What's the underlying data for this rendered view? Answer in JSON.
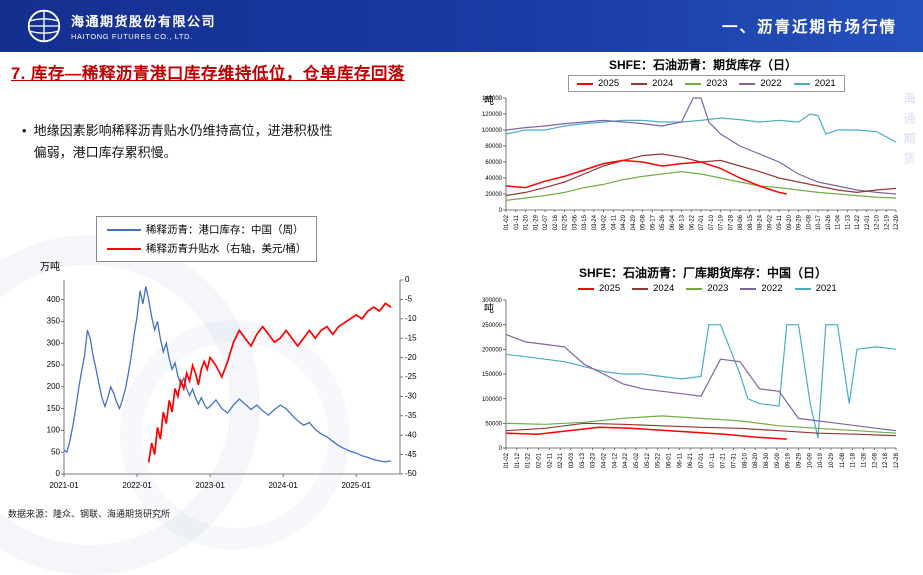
{
  "header": {
    "company_cn": "海通期货股份有限公司",
    "company_en": "HAITONG FUTURES CO., LTD.",
    "section_title": "一、沥青近期市场行情"
  },
  "slide": {
    "title": "7. 库存—稀释沥青港口库存维持低位，仓单库存回落",
    "bullet_marker": "•",
    "bullet": "地缘因素影响稀释沥青贴水仍维持高位，进港积极性偏弱，港口库存累积慢。",
    "source": "数据来源：隆众、钢联、海通期货研究所"
  },
  "decor": {
    "watermark_text": "海通期货"
  },
  "colors": {
    "header_blue": "#1a3aa5",
    "title_red": "#c00000",
    "series_2025": "#ff0000",
    "series_2024": "#953735",
    "series_2023": "#70ad47",
    "series_2022": "#8064a2",
    "series_2021": "#4bacc6",
    "port_blue": "#4472c4"
  },
  "chart_data": [
    {
      "type": "line",
      "title": "",
      "ylabel": "万吨",
      "xlabel": "",
      "grid": false,
      "legend_position": "top",
      "xlim": [
        2021.0,
        2025.6
      ],
      "ylim": [
        0,
        445
      ],
      "yticks": [
        0,
        50,
        100,
        150,
        200,
        250,
        300,
        350,
        400
      ],
      "y2lim": [
        -50,
        0
      ],
      "y2ticks": [
        0,
        -5,
        -10,
        -15,
        -20,
        -25,
        -30,
        -35,
        -40,
        -45,
        -50
      ],
      "xticks": [
        {
          "v": 2021,
          "label": "2021-01"
        },
        {
          "v": 2022,
          "label": "2022-01"
        },
        {
          "v": 2023,
          "label": "2023-01"
        },
        {
          "v": 2024,
          "label": "2024-01"
        },
        {
          "v": 2025,
          "label": "2025-01"
        }
      ],
      "series": [
        {
          "key": "port_inventory_cn_weekly",
          "name": "稀释沥青：港口库存：中国（周）",
          "color": "#4472c4",
          "axis": "left",
          "lw": 1.3,
          "x": [
            2021.0,
            2021.04,
            2021.08,
            2021.12,
            2021.16,
            2021.2,
            2021.24,
            2021.28,
            2021.32,
            2021.36,
            2021.4,
            2021.44,
            2021.48,
            2021.52,
            2021.56,
            2021.6,
            2021.64,
            2021.68,
            2021.72,
            2021.76,
            2021.8,
            2021.84,
            2021.88,
            2021.92,
            2021.96,
            2022.0,
            2022.04,
            2022.08,
            2022.12,
            2022.16,
            2022.2,
            2022.24,
            2022.28,
            2022.32,
            2022.36,
            2022.4,
            2022.44,
            2022.48,
            2022.52,
            2022.56,
            2022.6,
            2022.64,
            2022.68,
            2022.72,
            2022.76,
            2022.8,
            2022.84,
            2022.88,
            2022.92,
            2022.96,
            2023.0,
            2023.08,
            2023.16,
            2023.24,
            2023.32,
            2023.4,
            2023.48,
            2023.56,
            2023.64,
            2023.72,
            2023.8,
            2023.88,
            2023.96,
            2024.04,
            2024.12,
            2024.2,
            2024.28,
            2024.36,
            2024.44,
            2024.52,
            2024.6,
            2024.68,
            2024.76,
            2024.84,
            2024.92,
            2025.0,
            2025.08,
            2025.16,
            2025.24,
            2025.32,
            2025.4,
            2025.48
          ],
          "y": [
            55,
            50,
            75,
            110,
            150,
            195,
            235,
            270,
            330,
            310,
            270,
            240,
            205,
            175,
            155,
            175,
            200,
            185,
            165,
            150,
            170,
            195,
            230,
            270,
            320,
            360,
            420,
            390,
            430,
            400,
            360,
            330,
            350,
            310,
            280,
            300,
            265,
            240,
            255,
            225,
            205,
            220,
            195,
            180,
            195,
            175,
            160,
            175,
            160,
            150,
            155,
            170,
            150,
            140,
            158,
            172,
            160,
            148,
            158,
            145,
            135,
            148,
            158,
            150,
            135,
            122,
            112,
            118,
            102,
            92,
            85,
            75,
            65,
            58,
            52,
            48,
            42,
            38,
            33,
            30,
            28,
            30
          ]
        },
        {
          "key": "diluted_premium_rhs",
          "name": "稀释沥青升贴水（右轴，美元/桶）",
          "color": "#ff0000",
          "axis": "right",
          "lw": 1.7,
          "x": [
            2022.16,
            2022.2,
            2022.24,
            2022.28,
            2022.32,
            2022.36,
            2022.4,
            2022.44,
            2022.48,
            2022.52,
            2022.56,
            2022.6,
            2022.64,
            2022.68,
            2022.72,
            2022.76,
            2022.8,
            2022.84,
            2022.88,
            2022.92,
            2022.96,
            2023.0,
            2023.08,
            2023.16,
            2023.24,
            2023.32,
            2023.4,
            2023.48,
            2023.56,
            2023.64,
            2023.72,
            2023.8,
            2023.88,
            2023.96,
            2024.04,
            2024.12,
            2024.2,
            2024.28,
            2024.36,
            2024.44,
            2024.52,
            2024.6,
            2024.68,
            2024.76,
            2024.84,
            2024.92,
            2025.0,
            2025.08,
            2025.16,
            2025.24,
            2025.32,
            2025.4,
            2025.48
          ],
          "y": [
            -47,
            -42,
            -45,
            -38,
            -41,
            -34,
            -37,
            -31,
            -34,
            -28,
            -30,
            -26,
            -28,
            -24,
            -26,
            -22,
            -24,
            -27,
            -23,
            -21,
            -23,
            -20,
            -22,
            -25,
            -21,
            -16,
            -13,
            -15,
            -17,
            -14,
            -12,
            -14,
            -16,
            -15,
            -13,
            -15,
            -17,
            -15,
            -13,
            -15,
            -13,
            -12,
            -14,
            -12,
            -11,
            -10,
            -9,
            -10,
            -8,
            -7,
            -8,
            -6,
            -7
          ]
        }
      ]
    },
    {
      "type": "line",
      "title": "SHFE：石油沥青：期货库存（日）",
      "ylabel": "吨",
      "xlabel": "",
      "grid": false,
      "legend_position": "top",
      "draw_reverse": true,
      "xlim": [
        0,
        1
      ],
      "ylim": [
        0,
        140000
      ],
      "yticks": [
        0,
        20000,
        40000,
        60000,
        80000,
        100000,
        120000,
        140000
      ],
      "xtick_labels": [
        "01-02",
        "01-11",
        "01-20",
        "01-29",
        "02-07",
        "02-16",
        "02-25",
        "03-06",
        "03-15",
        "03-24",
        "04-02",
        "04-11",
        "04-20",
        "04-29",
        "05-08",
        "05-17",
        "05-26",
        "06-04",
        "06-13",
        "06-22",
        "07-01",
        "07-10",
        "07-19",
        "07-28",
        "08-06",
        "08-15",
        "08-24",
        "09-02",
        "09-11",
        "09-20",
        "09-29",
        "10-08",
        "10-17",
        "10-26",
        "11-04",
        "11-13",
        "11-22",
        "12-01",
        "12-10",
        "12-19",
        "12-29"
      ],
      "series": [
        {
          "key": "y2025",
          "name": "2025",
          "color": "#ff0000",
          "axis": "left",
          "lw": 1.5,
          "x": [
            0,
            0.05,
            0.1,
            0.15,
            0.2,
            0.25,
            0.3,
            0.35,
            0.4,
            0.45,
            0.5,
            0.55,
            0.6,
            0.65,
            0.7,
            0.72
          ],
          "y": [
            30000,
            28000,
            36000,
            42000,
            50000,
            58000,
            62000,
            60000,
            55000,
            58000,
            60000,
            52000,
            40000,
            30000,
            22000,
            20000
          ]
        },
        {
          "key": "y2024",
          "name": "2024",
          "color": "#953735",
          "axis": "left",
          "lw": 1.2,
          "x": [
            0,
            0.05,
            0.1,
            0.15,
            0.2,
            0.25,
            0.3,
            0.35,
            0.4,
            0.45,
            0.5,
            0.55,
            0.6,
            0.65,
            0.7,
            0.75,
            0.8,
            0.85,
            0.9,
            0.95,
            1.0
          ],
          "y": [
            18000,
            22000,
            28000,
            35000,
            45000,
            55000,
            62000,
            68000,
            70000,
            66000,
            60000,
            62000,
            55000,
            48000,
            40000,
            35000,
            30000,
            25000,
            22000,
            25000,
            27000
          ]
        },
        {
          "key": "y2023",
          "name": "2023",
          "color": "#70ad47",
          "axis": "left",
          "lw": 1.2,
          "x": [
            0,
            0.05,
            0.1,
            0.15,
            0.2,
            0.25,
            0.3,
            0.35,
            0.4,
            0.45,
            0.5,
            0.55,
            0.6,
            0.65,
            0.7,
            0.75,
            0.8,
            0.85,
            0.9,
            0.95,
            1.0
          ],
          "y": [
            12000,
            15000,
            18000,
            22000,
            28000,
            32000,
            38000,
            42000,
            45000,
            48000,
            45000,
            40000,
            35000,
            30000,
            28000,
            25000,
            22000,
            20000,
            18000,
            16000,
            15000
          ]
        },
        {
          "key": "y2022",
          "name": "2022",
          "color": "#8064a2",
          "axis": "left",
          "lw": 1.2,
          "x": [
            0,
            0.05,
            0.1,
            0.15,
            0.2,
            0.25,
            0.3,
            0.35,
            0.4,
            0.45,
            0.48,
            0.5,
            0.52,
            0.55,
            0.6,
            0.65,
            0.7,
            0.75,
            0.8,
            0.85,
            0.9,
            0.95,
            1.0
          ],
          "y": [
            100000,
            103000,
            105000,
            108000,
            110000,
            112000,
            110000,
            108000,
            105000,
            110000,
            140000,
            140000,
            110000,
            95000,
            80000,
            70000,
            60000,
            45000,
            35000,
            30000,
            25000,
            22000,
            20000
          ]
        },
        {
          "key": "y2021",
          "name": "2021",
          "color": "#4bacc6",
          "axis": "left",
          "lw": 1.2,
          "x": [
            0,
            0.05,
            0.1,
            0.15,
            0.2,
            0.25,
            0.3,
            0.35,
            0.4,
            0.45,
            0.5,
            0.55,
            0.6,
            0.65,
            0.7,
            0.75,
            0.78,
            0.8,
            0.82,
            0.85,
            0.9,
            0.95,
            1.0
          ],
          "y": [
            95000,
            100000,
            100000,
            105000,
            108000,
            110000,
            112000,
            112000,
            110000,
            110000,
            112000,
            115000,
            113000,
            110000,
            112000,
            110000,
            120000,
            118000,
            95000,
            100000,
            100000,
            98000,
            85000
          ]
        }
      ]
    },
    {
      "type": "line",
      "title": "SHFE：石油沥青：厂库期货库存：中国（日）",
      "ylabel": "吨",
      "xlabel": "",
      "grid": false,
      "legend_position": "top",
      "draw_reverse": true,
      "xlim": [
        0,
        1
      ],
      "ylim": [
        0,
        300000
      ],
      "yticks": [
        0,
        50000,
        100000,
        150000,
        200000,
        250000,
        300000
      ],
      "xtick_labels": [
        "01-02",
        "01-12",
        "01-22",
        "02-01",
        "02-11",
        "02-21",
        "03-03",
        "03-13",
        "03-23",
        "04-02",
        "04-12",
        "04-22",
        "05-02",
        "05-12",
        "05-22",
        "06-01",
        "06-11",
        "06-21",
        "07-01",
        "07-11",
        "07-21",
        "07-31",
        "08-10",
        "08-20",
        "08-30",
        "09-09",
        "09-19",
        "09-29",
        "10-09",
        "10-19",
        "10-29",
        "11-08",
        "11-18",
        "11-28",
        "12-08",
        "12-18",
        "12-28"
      ],
      "series": [
        {
          "key": "y2025",
          "name": "2025",
          "color": "#ff0000",
          "axis": "left",
          "lw": 1.5,
          "x": [
            0,
            0.08,
            0.16,
            0.24,
            0.32,
            0.4,
            0.48,
            0.56,
            0.64,
            0.72
          ],
          "y": [
            30000,
            28000,
            35000,
            42000,
            40000,
            36000,
            32000,
            28000,
            22000,
            18000
          ]
        },
        {
          "key": "y2024",
          "name": "2024",
          "color": "#953735",
          "axis": "left",
          "lw": 1.2,
          "x": [
            0,
            0.1,
            0.2,
            0.3,
            0.4,
            0.5,
            0.6,
            0.7,
            0.8,
            0.9,
            1.0
          ],
          "y": [
            35000,
            40000,
            50000,
            48000,
            45000,
            42000,
            40000,
            35000,
            30000,
            28000,
            25000
          ]
        },
        {
          "key": "y2023",
          "name": "2023",
          "color": "#70ad47",
          "axis": "left",
          "lw": 1.2,
          "x": [
            0,
            0.1,
            0.2,
            0.3,
            0.4,
            0.5,
            0.6,
            0.7,
            0.8,
            0.9,
            1.0
          ],
          "y": [
            50000,
            48000,
            52000,
            60000,
            65000,
            60000,
            55000,
            45000,
            40000,
            35000,
            30000
          ]
        },
        {
          "key": "y2022",
          "name": "2022",
          "color": "#8064a2",
          "axis": "left",
          "lw": 1.2,
          "x": [
            0,
            0.05,
            0.1,
            0.15,
            0.2,
            0.25,
            0.3,
            0.35,
            0.4,
            0.45,
            0.5,
            0.55,
            0.6,
            0.65,
            0.7,
            0.75,
            0.8,
            0.85,
            0.9,
            0.95,
            1.0
          ],
          "y": [
            230000,
            215000,
            210000,
            205000,
            170000,
            150000,
            130000,
            120000,
            115000,
            110000,
            105000,
            180000,
            175000,
            120000,
            115000,
            60000,
            55000,
            50000,
            45000,
            40000,
            35000
          ]
        },
        {
          "key": "y2021",
          "name": "2021",
          "color": "#4bacc6",
          "axis": "left",
          "lw": 1.2,
          "x": [
            0,
            0.05,
            0.1,
            0.15,
            0.2,
            0.25,
            0.3,
            0.35,
            0.4,
            0.45,
            0.5,
            0.52,
            0.55,
            0.6,
            0.62,
            0.65,
            0.7,
            0.72,
            0.75,
            0.78,
            0.8,
            0.82,
            0.85,
            0.88,
            0.9,
            0.95,
            1.0
          ],
          "y": [
            190000,
            185000,
            180000,
            175000,
            165000,
            155000,
            150000,
            150000,
            145000,
            140000,
            145000,
            250000,
            250000,
            150000,
            100000,
            90000,
            85000,
            250000,
            250000,
            90000,
            20000,
            250000,
            250000,
            90000,
            200000,
            205000,
            200000
          ]
        }
      ]
    }
  ]
}
